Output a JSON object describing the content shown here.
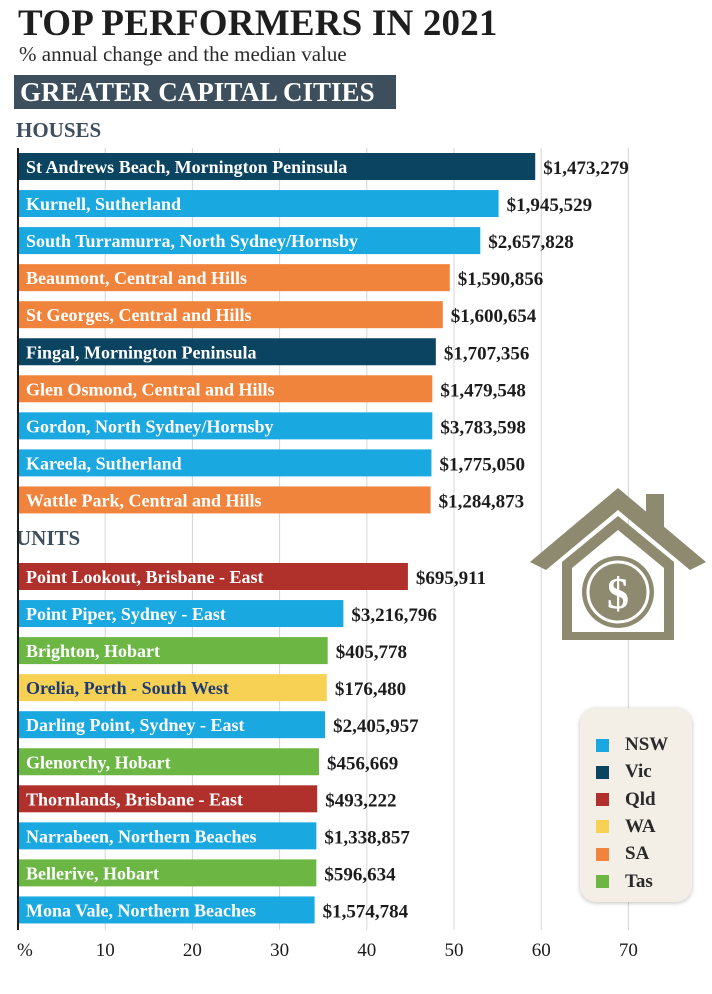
{
  "title": "TOP PERFORMERS IN 2021",
  "subtitle": "% annual change and the median value",
  "region": "GREATER CAPITAL CITIES",
  "sections": {
    "houses": "HOUSES",
    "units": "UNITS"
  },
  "colors": {
    "NSW": "#1aa8e0",
    "Vic": "#0b4460",
    "Qld": "#b0302c",
    "WA": "#f7d154",
    "SA": "#f0843c",
    "Tas": "#6cb744"
  },
  "legend": [
    {
      "state": "NSW",
      "label": "NSW"
    },
    {
      "state": "Vic",
      "label": "Vic"
    },
    {
      "state": "Qld",
      "label": "Qld"
    },
    {
      "state": "WA",
      "label": "WA"
    },
    {
      "state": "SA",
      "label": "SA"
    },
    {
      "state": "Tas",
      "label": "Tas"
    }
  ],
  "chart_data": {
    "type": "bar",
    "orientation": "horizontal",
    "xaxis_label": "%",
    "xticks": [
      10,
      20,
      30,
      40,
      50,
      60,
      70
    ],
    "xlim": [
      0,
      70
    ],
    "grid": true,
    "houses": [
      {
        "name": "St Andrews Beach, Mornington Peninsula",
        "value": 59.2,
        "median": "$1,473,279",
        "state": "Vic"
      },
      {
        "name": "Kurnell, Sutherland",
        "value": 55.0,
        "median": "$1,945,529",
        "state": "NSW"
      },
      {
        "name": "South Turramurra, North Sydney/Hornsby",
        "value": 52.9,
        "median": "$2,657,828",
        "state": "NSW"
      },
      {
        "name": "Beaumont, Central and Hills",
        "value": 49.4,
        "median": "$1,590,856",
        "state": "SA"
      },
      {
        "name": "St Georges, Central and Hills",
        "value": 48.6,
        "median": "$1,600,654",
        "state": "SA"
      },
      {
        "name": "Fingal, Mornington Peninsula",
        "value": 47.8,
        "median": "$1,707,356",
        "state": "Vic"
      },
      {
        "name": "Glen Osmond, Central and Hills",
        "value": 47.4,
        "median": "$1,479,548",
        "state": "SA"
      },
      {
        "name": "Gordon, North Sydney/Hornsby",
        "value": 47.4,
        "median": "$3,783,598",
        "state": "NSW"
      },
      {
        "name": "Kareela, Sutherland",
        "value": 47.3,
        "median": "$1,775,050",
        "state": "NSW"
      },
      {
        "name": "Wattle Park, Central and Hills",
        "value": 47.2,
        "median": "$1,284,873",
        "state": "SA"
      }
    ],
    "units": [
      {
        "name": "Point Lookout, Brisbane - East",
        "value": 44.6,
        "median": "$695,911",
        "state": "Qld"
      },
      {
        "name": "Point Piper, Sydney - East",
        "value": 37.2,
        "median": "$3,216,796",
        "state": "NSW"
      },
      {
        "name": "Brighton, Hobart",
        "value": 35.4,
        "median": "$405,778",
        "state": "Tas"
      },
      {
        "name": "Orelia, Perth - South West",
        "value": 35.3,
        "median": "$176,480",
        "state": "WA"
      },
      {
        "name": "Darling Point, Sydney - East",
        "value": 35.1,
        "median": "$2,405,957",
        "state": "NSW"
      },
      {
        "name": "Glenorchy, Hobart",
        "value": 34.4,
        "median": "$456,669",
        "state": "Tas"
      },
      {
        "name": "Thornlands, Brisbane - East",
        "value": 34.2,
        "median": "$493,222",
        "state": "Qld"
      },
      {
        "name": "Narrabeen, Northern Beaches",
        "value": 34.1,
        "median": "$1,338,857",
        "state": "NSW"
      },
      {
        "name": "Bellerive, Hobart",
        "value": 34.1,
        "median": "$596,634",
        "state": "Tas"
      },
      {
        "name": "Mona Vale, Northern Beaches",
        "value": 33.9,
        "median": "$1,574,784",
        "state": "NSW"
      }
    ]
  }
}
